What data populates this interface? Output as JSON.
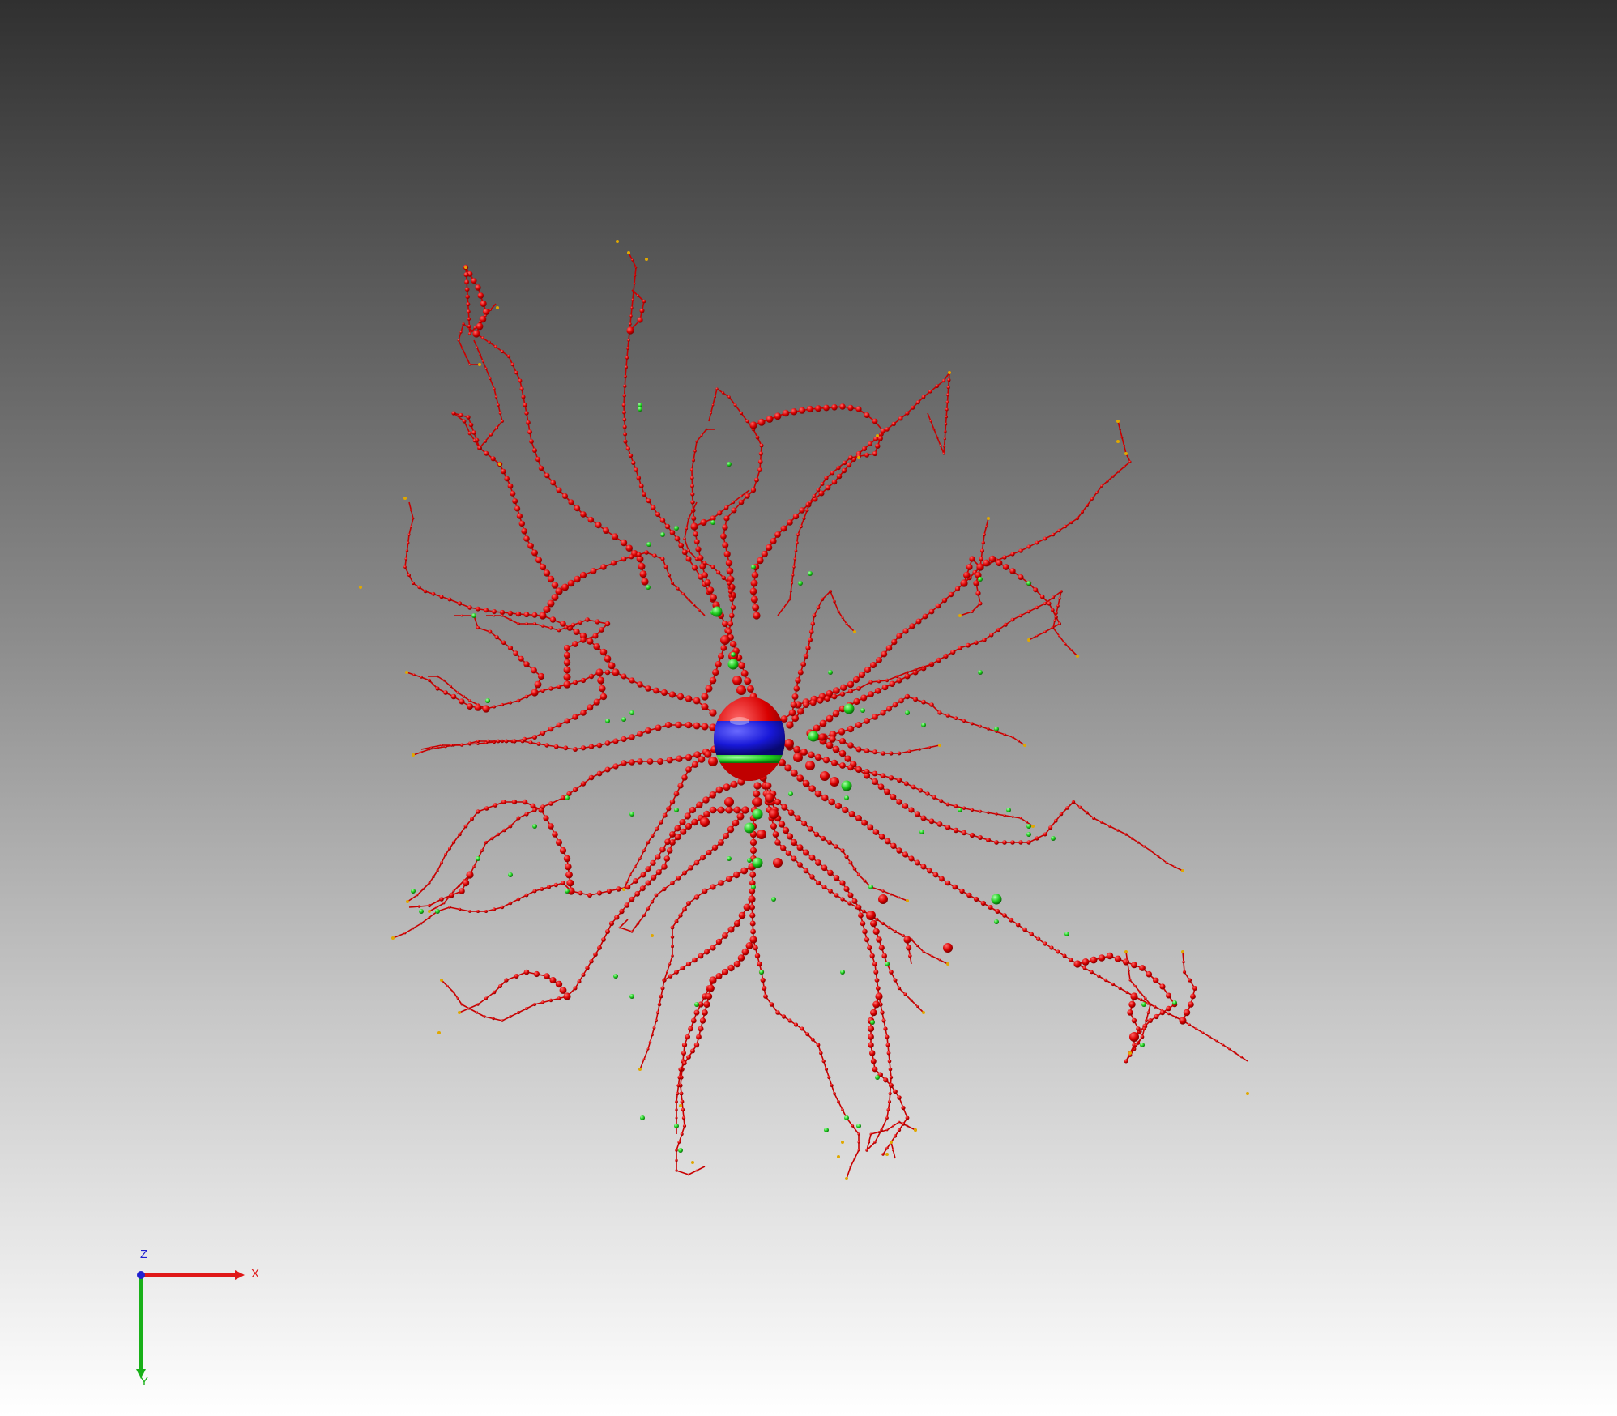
{
  "scene": {
    "background": {
      "top": "#303030",
      "bottom": "#ffffff"
    },
    "colors": {
      "dendrite": "#d40000",
      "branch_point": "#22cc22",
      "terminal": "#e0a800",
      "soma_red": "#e01010",
      "soma_blue": "#1a1adc",
      "soma_green": "#20b020"
    }
  },
  "axes": {
    "x_label": "X",
    "y_label": "Y",
    "z_label": "Z",
    "x_color": "#e01818",
    "y_color": "#18b018",
    "z_color": "#2020d0"
  }
}
